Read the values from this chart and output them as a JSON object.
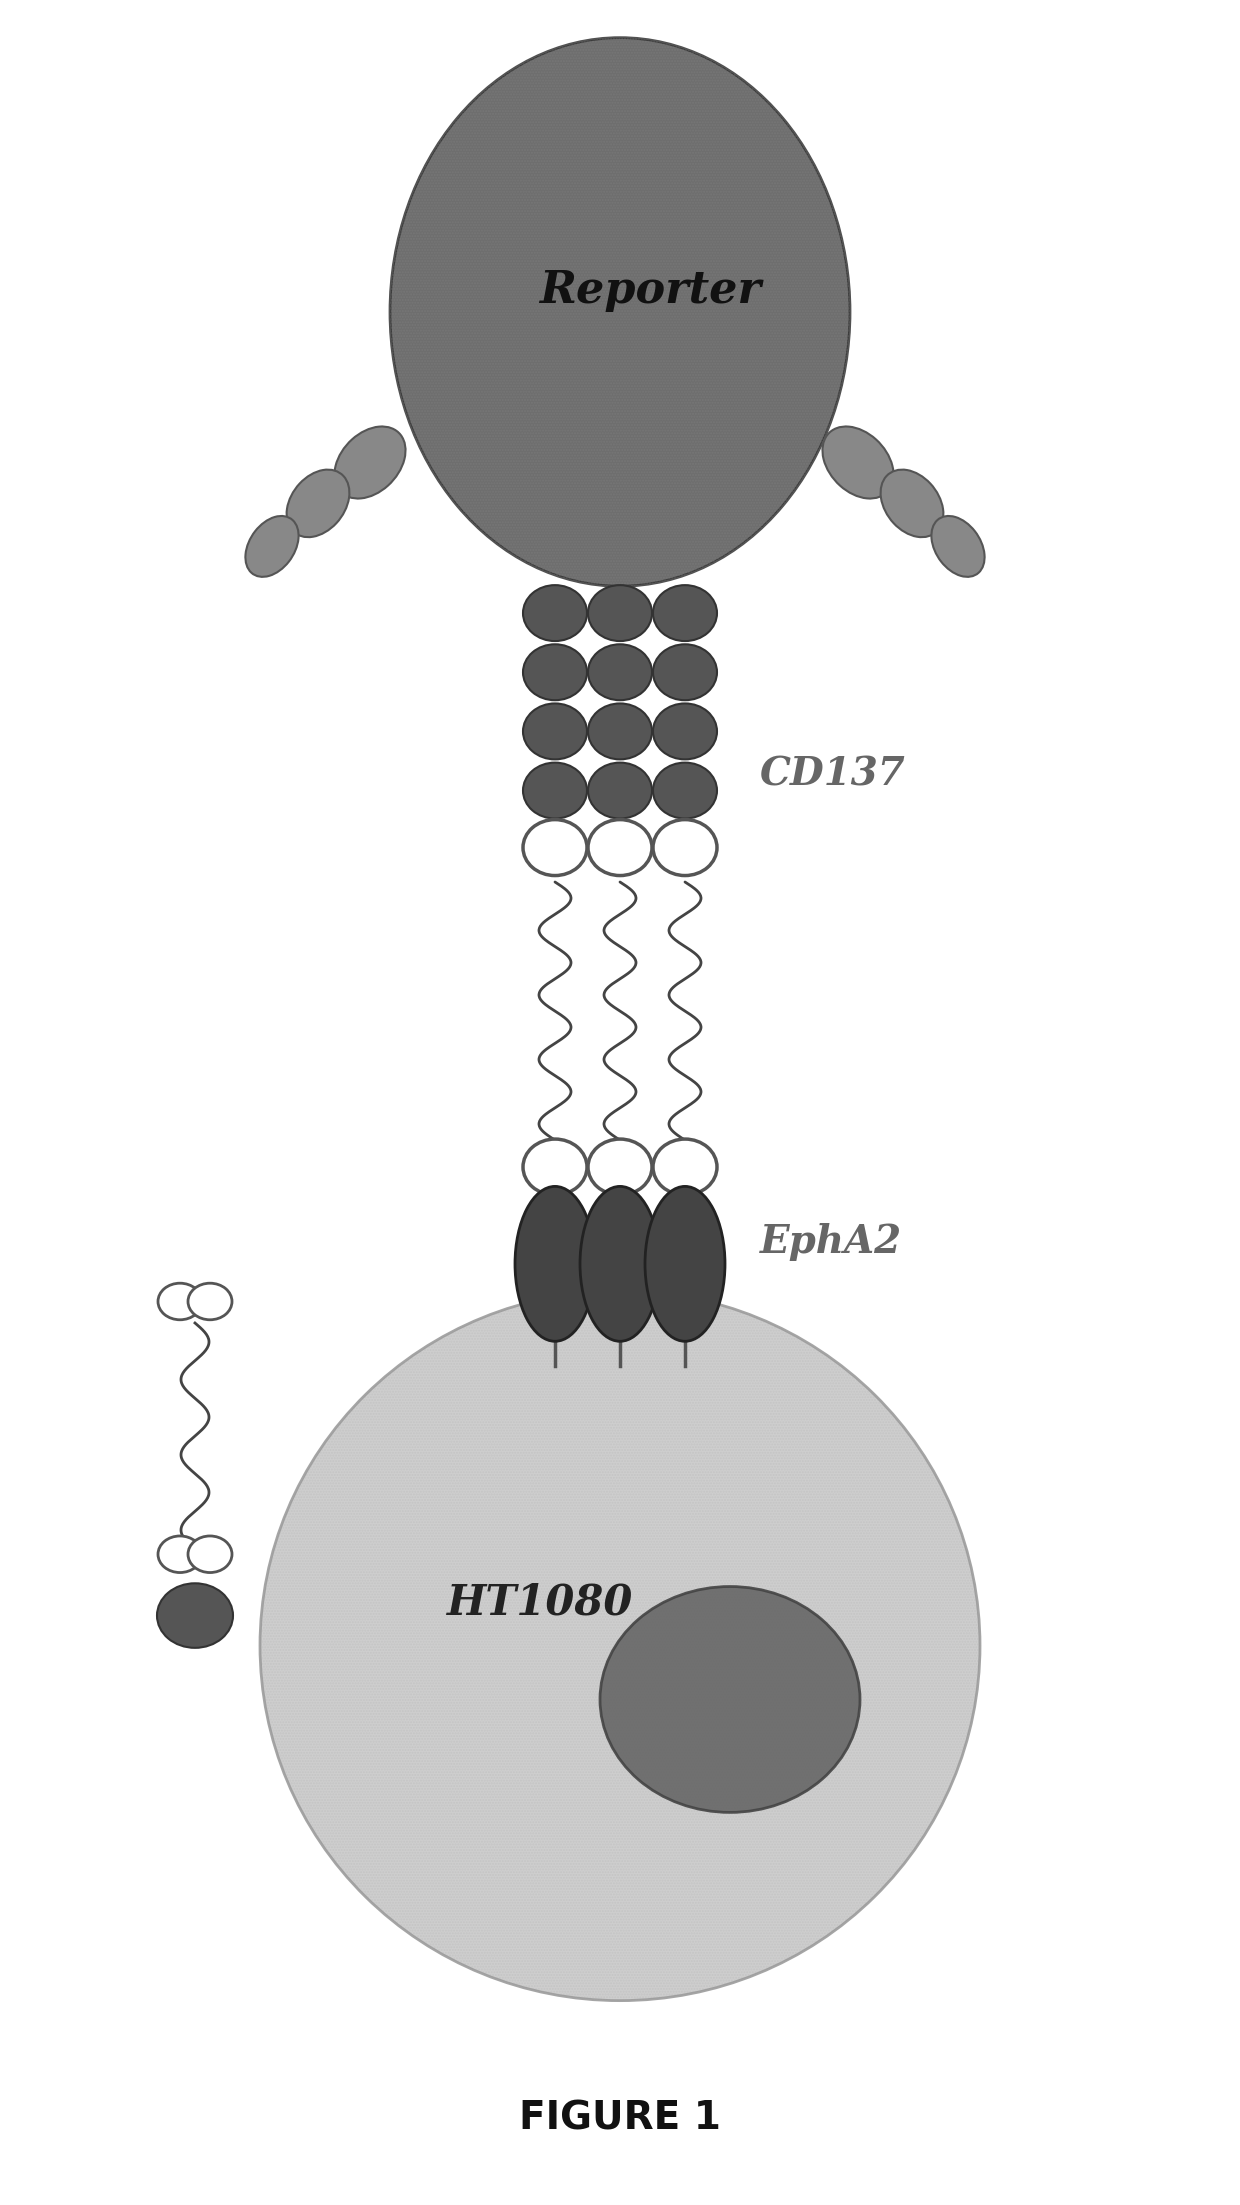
{
  "title": "FIGURE 1",
  "bg_color": "#ffffff",
  "reporter_label": "Reporter",
  "cd137_label": "CD137",
  "epha2_label": "EphA2",
  "ht1080_label": "HT1080",
  "reporter_color": "#555555",
  "cell_color": "#c0c0c0",
  "nucleus_color": "#555555"
}
